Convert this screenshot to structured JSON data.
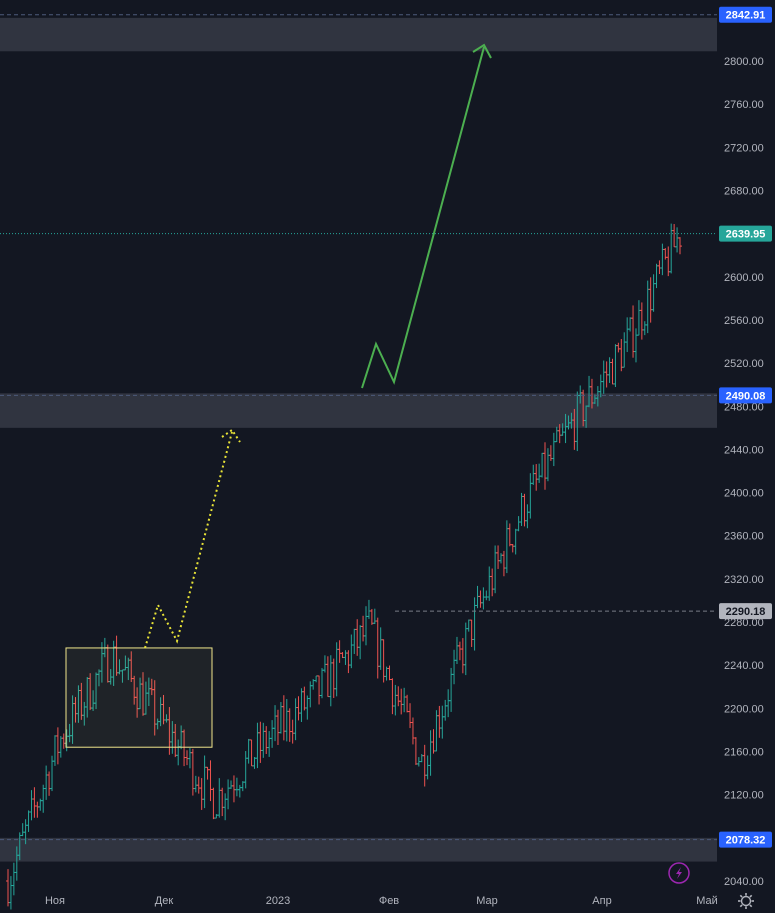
{
  "chart_data": {
    "type": "ohlc",
    "title": "",
    "ylim": [
      2030,
      2860
    ],
    "y_ticks": [
      2040,
      2080,
      2120,
      2160,
      2200,
      2240,
      2280,
      2320,
      2360,
      2400,
      2440,
      2480,
      2520,
      2560,
      2600,
      2640,
      2680,
      2720,
      2760,
      2800
    ],
    "x_labels": [
      "Ноя",
      "Дек",
      "2023",
      "Фев",
      "Мар",
      "Апр",
      "Май"
    ],
    "last_price": 2639.95,
    "levels": [
      {
        "label": "2842.91",
        "value": 2842.91
      },
      {
        "label": "2490.08",
        "value": 2490.08
      },
      {
        "label": "2290.18",
        "value": 2290.18
      },
      {
        "label": "2078.32",
        "value": 2078.32
      },
      {
        "label": "2639.95",
        "value": 2639.95
      }
    ],
    "zones": [
      {
        "from": 2809,
        "to": 2840
      },
      {
        "from": 2460,
        "to": 2492
      },
      {
        "from": 2058,
        "to": 2080
      }
    ],
    "consolidation_box": {
      "price_low": 2164,
      "price_high": 2256
    },
    "path_points": [
      {
        "month": "Oct",
        "close": 2040
      },
      {
        "month": "Nov",
        "close": 2170
      },
      {
        "month": "Nov-end",
        "close": 2250
      },
      {
        "month": "Dec",
        "close": 2185
      },
      {
        "month": "Dec-end",
        "close": 2115
      },
      {
        "month": "Jan",
        "close": 2170
      },
      {
        "month": "Jan-mid",
        "close": 2215
      },
      {
        "month": "Feb",
        "close": 2275
      },
      {
        "month": "Feb-mid",
        "close": 2150
      },
      {
        "month": "Mar",
        "close": 2280
      },
      {
        "month": "Mar-mid",
        "close": 2390
      },
      {
        "month": "Apr",
        "close": 2470
      },
      {
        "month": "Apr-mid",
        "close": 2540
      },
      {
        "month": "Apr-end",
        "close": 2640
      }
    ],
    "colors": {
      "background": "#131722",
      "up": "#26a69a",
      "down": "#ef5350",
      "grid": "#1e222d",
      "zone": "#363a45",
      "box": "#f0e68c",
      "arrow_green": "#4caf50",
      "arrow_yellow": "#e8e337",
      "badge_blue": "#2962ff",
      "badge_teal": "#26a69a",
      "badge_gray": "#b2b5be"
    }
  },
  "icons": {
    "lightning": "lightning-icon",
    "settings": "gear-icon"
  }
}
